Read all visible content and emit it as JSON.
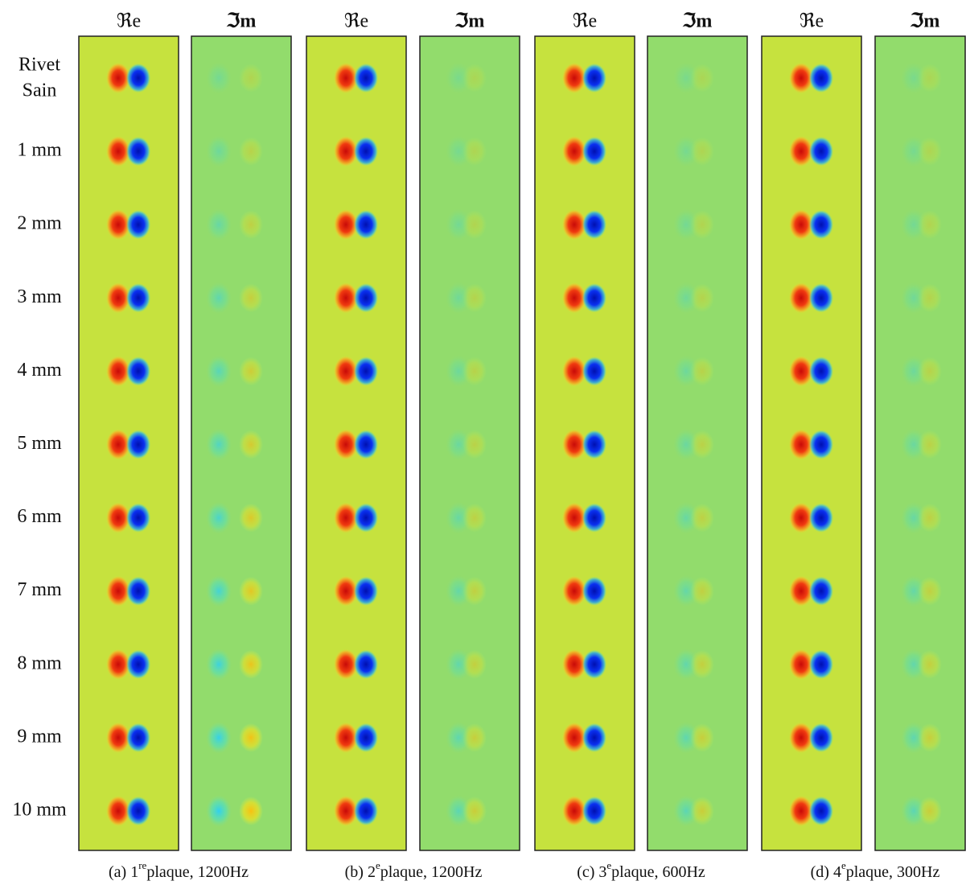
{
  "column_headers": [
    "ℜe",
    "ℑm",
    "ℜe",
    "ℑm",
    "ℜe",
    "ℑm",
    "ℜe",
    "ℑm"
  ],
  "row_labels": [
    [
      "Rivet",
      "Sain"
    ],
    "1 mm",
    "2 mm",
    "3 mm",
    "4 mm",
    "5 mm",
    "6 mm",
    "7 mm",
    "8 mm",
    "9 mm",
    "10 mm"
  ],
  "captions": [
    {
      "prefix": "(a) 1",
      "sup": "re",
      "suffix": "plaque, 1200Hz"
    },
    {
      "prefix": "(b) 2",
      "sup": "e",
      "suffix": "plaque, 1200Hz"
    },
    {
      "prefix": "(c) 3",
      "sup": "e",
      "suffix": "plaque, 600Hz"
    },
    {
      "prefix": "(d) 4",
      "sup": "e",
      "suffix": "plaque, 300Hz"
    }
  ]
}
